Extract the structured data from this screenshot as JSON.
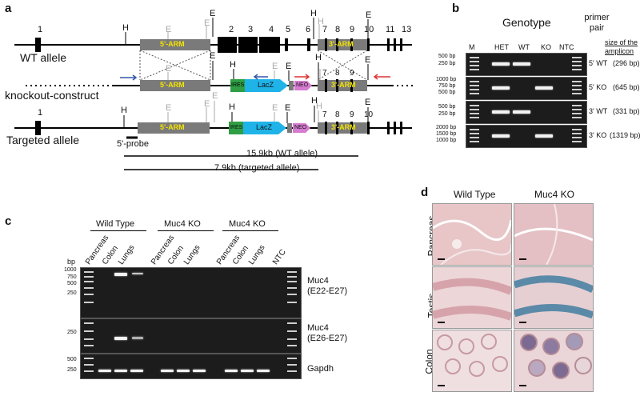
{
  "panel_a": {
    "letter": "a",
    "wt_allele": "WT allele",
    "ko_construct": "knockout-construct",
    "targeted_allele": "Targeted allele",
    "five_arm": "5'-ARM",
    "three_arm": "3'-ARM",
    "ires": "IRES",
    "lacz": "LacZ",
    "neo": "NEO",
    "probe": "5'-probe",
    "wt_size": "15.9kb (WT allele)",
    "targeted_size": "7.9kb (targeted allele)",
    "exons_wt": [
      "1",
      "2",
      "3",
      "4",
      "5",
      "6",
      "7",
      "8",
      "9",
      "10",
      "11",
      "13"
    ],
    "exons_ko": [
      "7",
      "8",
      "9"
    ],
    "exons_targeted": [
      "1",
      "7",
      "8",
      "9",
      "10"
    ],
    "site_h": "H",
    "site_e": "E"
  },
  "panel_b": {
    "letter": "b",
    "genotype": "Genotype",
    "primer_pair": "primer pair",
    "size_header": "size of the amplicon",
    "lanes": [
      "M",
      "HET",
      "WT",
      "KO",
      "NTC"
    ],
    "rows": [
      {
        "ladder": [
          "500 bp",
          "250 bp"
        ],
        "primer": "5' WT",
        "size": "(296 bp)"
      },
      {
        "ladder": [
          "1000 bp",
          "750 bp",
          "500 bp"
        ],
        "primer": "5' KO",
        "size": "(645 bp)"
      },
      {
        "ladder": [
          "500 bp",
          "250 bp"
        ],
        "primer": "3' WT",
        "size": "(331 bp)"
      },
      {
        "ladder": [
          "2000 bp",
          "1500 bp",
          "1000 bp"
        ],
        "primer": "3' KO",
        "size": "(1319 bp)"
      }
    ]
  },
  "panel_c": {
    "letter": "c",
    "groups": [
      "Wild Type",
      "Muc4 KO",
      "Muc4 KO"
    ],
    "lanes": [
      "Pancreas",
      "Colon",
      "Lungs",
      "Pancreas",
      "Colon",
      "Lungs",
      "Pancreas",
      "Colon",
      "Lungs",
      "NTC"
    ],
    "bp": "bp",
    "ladder1": [
      "1000",
      "750",
      "500",
      "250"
    ],
    "ladder2": [
      "250"
    ],
    "ladder3": [
      "500",
      "250"
    ],
    "gel_labels": [
      "Muc4",
      "(E22-E27)",
      "Muc4",
      "(E26-E27)",
      "Gapdh"
    ]
  },
  "panel_d": {
    "letter": "d",
    "cols": [
      "Wild Type",
      "Muc4 KO"
    ],
    "rows": [
      "Pancreas",
      "Testis",
      "Colon"
    ]
  }
}
